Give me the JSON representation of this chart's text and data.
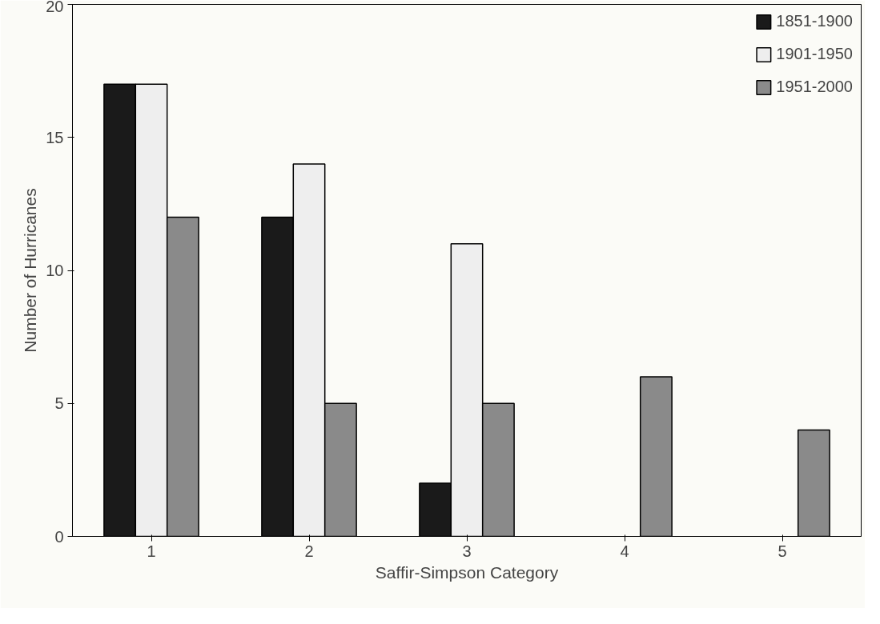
{
  "chart_data": {
    "type": "bar",
    "xlabel": "Saffir-Simpson Category",
    "ylabel": "Number of Hurricanes",
    "categories": [
      "1",
      "2",
      "3",
      "4",
      "5"
    ],
    "series": [
      {
        "name": "1851-1900",
        "color": "#1a1a1a",
        "values": [
          17,
          12,
          2,
          null,
          null
        ]
      },
      {
        "name": "1901-1950",
        "color": "#eeeeee",
        "values": [
          17,
          14,
          11,
          null,
          null
        ]
      },
      {
        "name": "1951-2000",
        "color": "#8a8a8a",
        "values": [
          12,
          5,
          5,
          6,
          4
        ]
      }
    ],
    "ylim": [
      0,
      20
    ],
    "yticks": [
      0,
      5,
      10,
      15,
      20
    ],
    "grid": false,
    "legend": "top right"
  }
}
